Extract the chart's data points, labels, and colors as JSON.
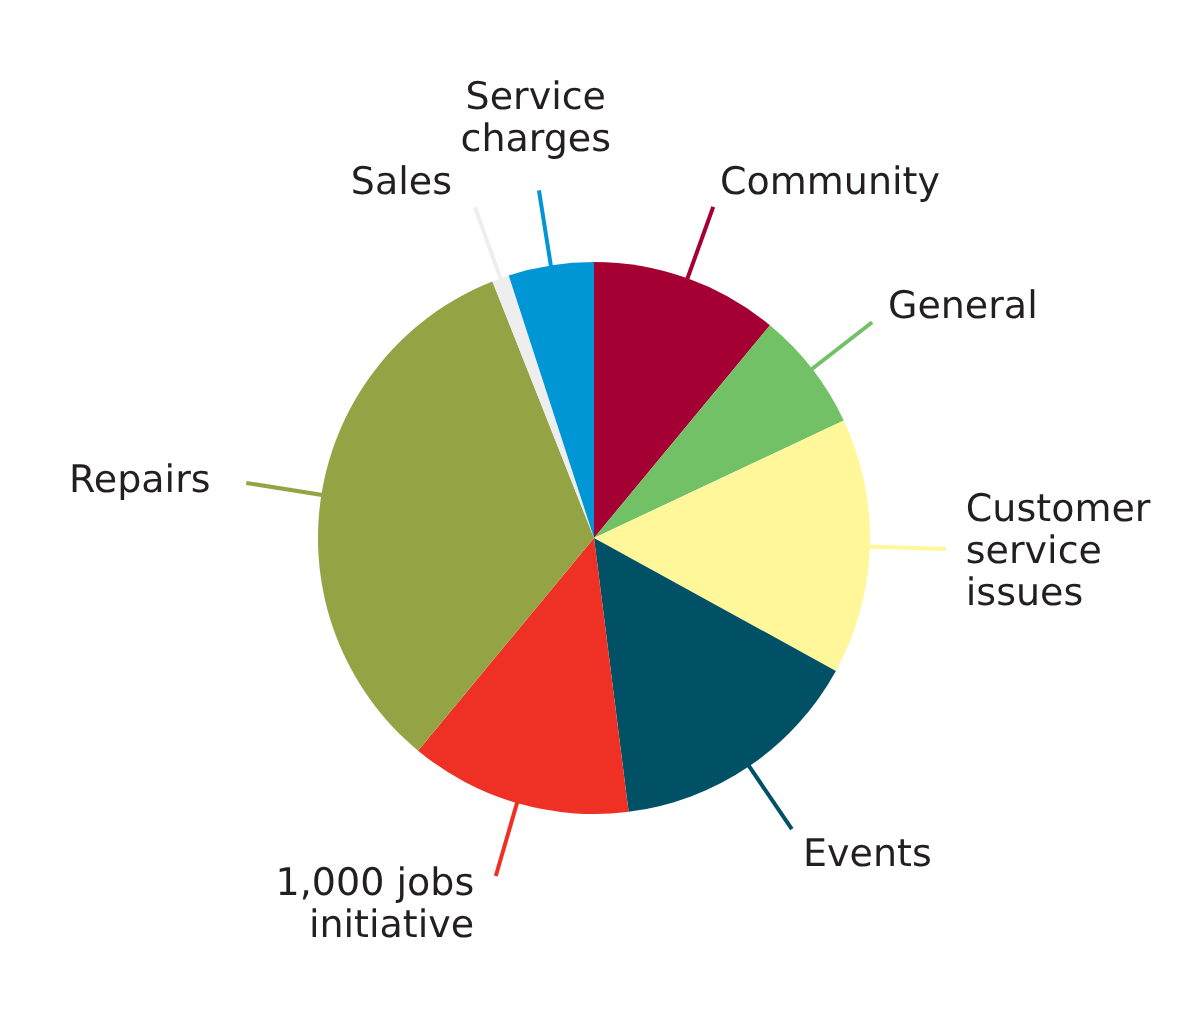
{
  "chart_data": {
    "type": "pie",
    "categories": [
      "Community",
      "General",
      "Customer service issues",
      "Events",
      "1,000 jobs initiative",
      "Repairs",
      "Sales",
      "Service charges"
    ],
    "values": [
      11,
      7,
      15,
      15,
      13,
      33,
      1,
      5
    ],
    "colors": [
      "#a50034",
      "#72c167",
      "#fff799",
      "#005066",
      "#ee3124",
      "#94a444",
      "#eeeeee",
      "#0096d6"
    ],
    "legend": false
  }
}
